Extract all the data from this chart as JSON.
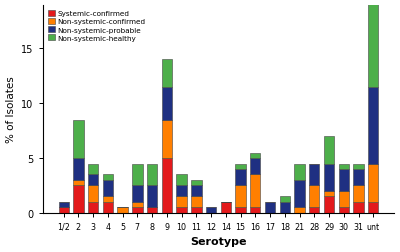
{
  "categories": [
    "1/2",
    "2",
    "3",
    "4",
    "5",
    "7",
    "8",
    "9",
    "10",
    "11",
    "12",
    "14",
    "15",
    "16",
    "17",
    "18",
    "21",
    "28",
    "29",
    "30",
    "31",
    "unt"
  ],
  "systemic_confirmed": [
    0.5,
    2.5,
    1.0,
    1.0,
    0.0,
    0.5,
    0.5,
    5.0,
    0.5,
    0.5,
    0.0,
    1.0,
    0.5,
    0.5,
    0.0,
    0.0,
    0.0,
    0.5,
    1.5,
    0.5,
    1.0,
    1.0
  ],
  "nonsystemic_confirmed": [
    0.0,
    0.5,
    1.5,
    0.5,
    0.5,
    0.5,
    0.0,
    3.5,
    1.0,
    1.0,
    0.0,
    0.0,
    2.0,
    3.0,
    0.0,
    0.0,
    0.5,
    2.0,
    0.5,
    1.5,
    1.5,
    3.5
  ],
  "nonsystemic_probable": [
    0.5,
    2.0,
    1.0,
    1.5,
    0.0,
    1.5,
    2.0,
    3.0,
    1.0,
    1.0,
    0.5,
    0.0,
    1.5,
    1.5,
    1.0,
    1.0,
    2.5,
    2.0,
    2.5,
    2.0,
    1.5,
    7.0
  ],
  "nonsystemic_healthy": [
    0.0,
    3.5,
    1.0,
    0.5,
    0.0,
    2.0,
    2.0,
    2.5,
    1.0,
    0.5,
    0.0,
    0.0,
    0.5,
    0.5,
    0.0,
    0.5,
    1.5,
    0.0,
    2.5,
    0.5,
    0.5,
    8.0
  ],
  "colors": {
    "systemic_confirmed": "#e31a1c",
    "nonsystemic_confirmed": "#ff7f00",
    "nonsystemic_probable": "#1f3082",
    "nonsystemic_healthy": "#4daf4a"
  },
  "legend_labels": [
    "Systemic-confirmed",
    "Non-systemic-confirmed",
    "Non-systemic-probable",
    "Non-systemic-healthy"
  ],
  "ylabel": "% of Isolates",
  "xlabel": "Serotype",
  "ylim": [
    0,
    19
  ],
  "yticks": [
    0,
    5,
    10,
    15
  ]
}
